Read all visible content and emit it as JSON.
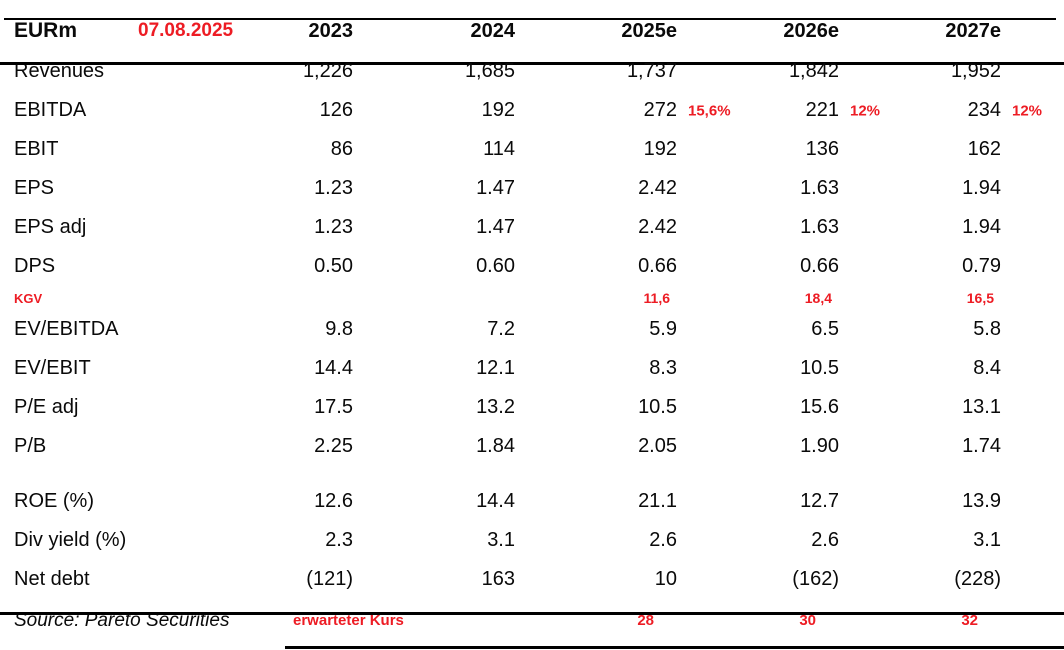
{
  "colors": {
    "annotation_red": "#ed1c24",
    "text": "#0a0a0a",
    "background": "#ffffff",
    "rule": "#000000"
  },
  "header": {
    "unit_label": "EURm",
    "date_annotation": "07.08.2025",
    "columns": [
      "2023",
      "2024",
      "2025e",
      "2026e",
      "2027e"
    ]
  },
  "table": {
    "rows": [
      {
        "label": "Revenues",
        "values": [
          "1,226",
          "1,685",
          "1,737",
          "1,842",
          "1,952"
        ]
      },
      {
        "label": "EBITDA",
        "values": [
          "126",
          "192",
          "272",
          "221",
          "234"
        ],
        "annotations": [
          "",
          "",
          "15,6%",
          "12%",
          "12%"
        ]
      },
      {
        "label": "EBIT",
        "values": [
          "86",
          "114",
          "192",
          "136",
          "162"
        ]
      },
      {
        "label": "EPS",
        "values": [
          "1.23",
          "1.47",
          "2.42",
          "1.63",
          "1.94"
        ]
      },
      {
        "label": "EPS adj",
        "values": [
          "1.23",
          "1.47",
          "2.42",
          "1.63",
          "1.94"
        ]
      },
      {
        "label": "DPS",
        "values": [
          "0.50",
          "0.60",
          "0.66",
          "0.66",
          "0.79"
        ]
      },
      {
        "label": "KGV",
        "variant": "annotation",
        "values": [
          "",
          "",
          "11,6",
          "18,4",
          "16,5"
        ]
      },
      {
        "label": "EV/EBITDA",
        "values": [
          "9.8",
          "7.2",
          "5.9",
          "6.5",
          "5.8"
        ]
      },
      {
        "label": "EV/EBIT",
        "values": [
          "14.4",
          "12.1",
          "8.3",
          "10.5",
          "8.4"
        ]
      },
      {
        "label": "P/E adj",
        "values": [
          "17.5",
          "13.2",
          "10.5",
          "15.6",
          "13.1"
        ]
      },
      {
        "label": "P/B",
        "values": [
          "2.25",
          "1.84",
          "2.05",
          "1.90",
          "1.74"
        ]
      },
      {
        "label": "",
        "variant": "spacer",
        "values": [
          "",
          "",
          "",
          "",
          ""
        ]
      },
      {
        "label": "ROE (%)",
        "values": [
          "12.6",
          "14.4",
          "21.1",
          "12.7",
          "13.9"
        ]
      },
      {
        "label": "Div yield (%)",
        "values": [
          "2.3",
          "3.1",
          "2.6",
          "2.6",
          "3.1"
        ]
      },
      {
        "label": "Net debt",
        "values": [
          "(121)",
          "163",
          "10",
          "(162)",
          "(228)"
        ]
      }
    ]
  },
  "footer": {
    "source": "Source: Pareto Securities",
    "expected_price_label": "erwarteter Kurs",
    "expected_price_values": [
      "",
      "",
      "28",
      "30",
      "32"
    ]
  }
}
